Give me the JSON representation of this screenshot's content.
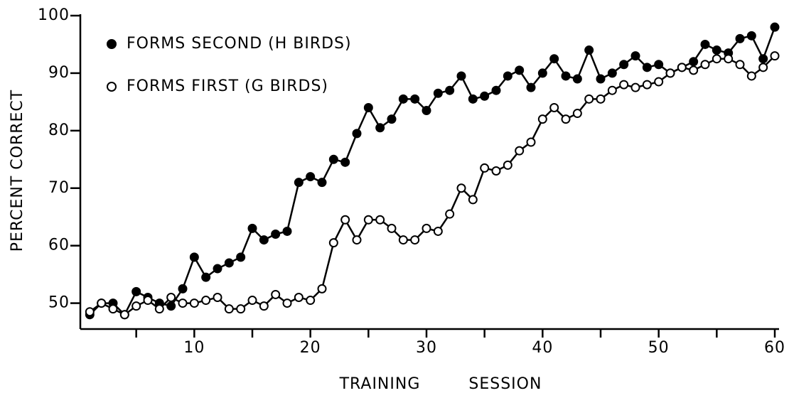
{
  "chart_data": {
    "type": "line",
    "x_label": "TRAINING SESSION",
    "y_label": "PERCENT CORRECT",
    "x": [
      1,
      2,
      3,
      4,
      5,
      6,
      7,
      8,
      9,
      10,
      11,
      12,
      13,
      14,
      15,
      16,
      17,
      18,
      19,
      20,
      21,
      22,
      23,
      24,
      25,
      26,
      27,
      28,
      29,
      30,
      31,
      32,
      33,
      34,
      35,
      36,
      37,
      38,
      39,
      40,
      41,
      42,
      43,
      44,
      45,
      46,
      47,
      48,
      49,
      50,
      51,
      52,
      53,
      54,
      55,
      56,
      57,
      58,
      59,
      60
    ],
    "series": [
      {
        "name": "FORMS SECOND (H BIRDS)",
        "color": "#000000",
        "fill": "#000000",
        "values": [
          48,
          50,
          50,
          48,
          52,
          51,
          50,
          49.5,
          52.5,
          58,
          54.5,
          56,
          57,
          58,
          63,
          61,
          62,
          62.5,
          71,
          72,
          71,
          75,
          74.5,
          79.5,
          84,
          80.5,
          82,
          85.5,
          85.5,
          83.5,
          86.5,
          87,
          89.5,
          85.5,
          86,
          87,
          89.5,
          90.5,
          87.5,
          90,
          92.5,
          89.5,
          89,
          94,
          89,
          90,
          91.5,
          93,
          91,
          91.5,
          90,
          91,
          92,
          95,
          94,
          93.5,
          96,
          96.5,
          92.5,
          98
        ]
      },
      {
        "name": "FORMS FIRST (G BIRDS)",
        "color": "#000000",
        "fill": "#ffffff",
        "values": [
          48.5,
          50,
          49,
          48,
          49.5,
          50.5,
          49,
          51,
          50,
          50,
          50.5,
          51,
          49,
          49,
          50.5,
          49.5,
          51.5,
          50,
          51,
          50.5,
          52.5,
          60.5,
          64.5,
          61,
          64.5,
          64.5,
          63,
          61,
          61,
          63,
          62.5,
          65.5,
          70,
          68,
          73.5,
          73,
          74,
          76.5,
          78,
          82,
          84,
          82,
          83,
          85.5,
          85.5,
          87,
          88,
          87.5,
          88,
          88.5,
          90,
          91,
          90.5,
          91.5,
          92.5,
          92.5,
          91.5,
          89.5,
          91,
          93
        ]
      }
    ],
    "xlim": [
      0,
      60
    ],
    "ylim": [
      45.5,
      100
    ],
    "xticks": [
      10,
      20,
      30,
      40,
      50,
      60
    ],
    "xminor_ticks": [
      5,
      15,
      25,
      35,
      45,
      55
    ],
    "yticks": [
      50,
      60,
      70,
      80,
      90,
      100
    ],
    "legend": "upper left"
  }
}
